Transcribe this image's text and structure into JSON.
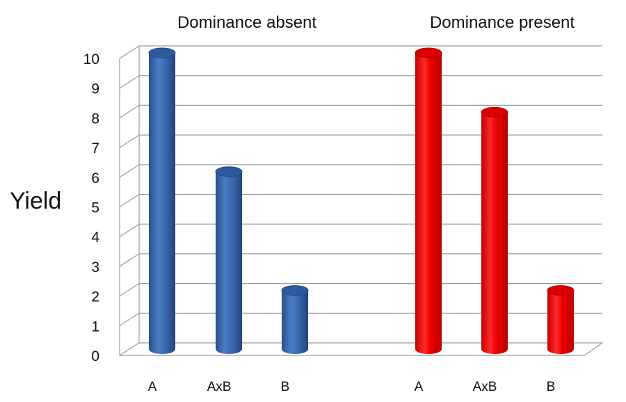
{
  "chart_data": {
    "type": "bar",
    "ylabel": "Yield",
    "ylim": [
      0,
      10
    ],
    "yticks": [
      0,
      1,
      2,
      3,
      4,
      5,
      6,
      7,
      8,
      9,
      10
    ],
    "grid": true,
    "style": "3d-cylinder",
    "groups": [
      {
        "title": "Dominance absent",
        "color": "#3b6bb0",
        "categories": [
          "A",
          "AxB",
          "B"
        ],
        "values": [
          10,
          6,
          2
        ]
      },
      {
        "title": "Dominance present",
        "color": "#ff0000",
        "categories": [
          "A",
          "AxB",
          "B"
        ],
        "values": [
          10,
          8,
          2
        ]
      }
    ]
  }
}
